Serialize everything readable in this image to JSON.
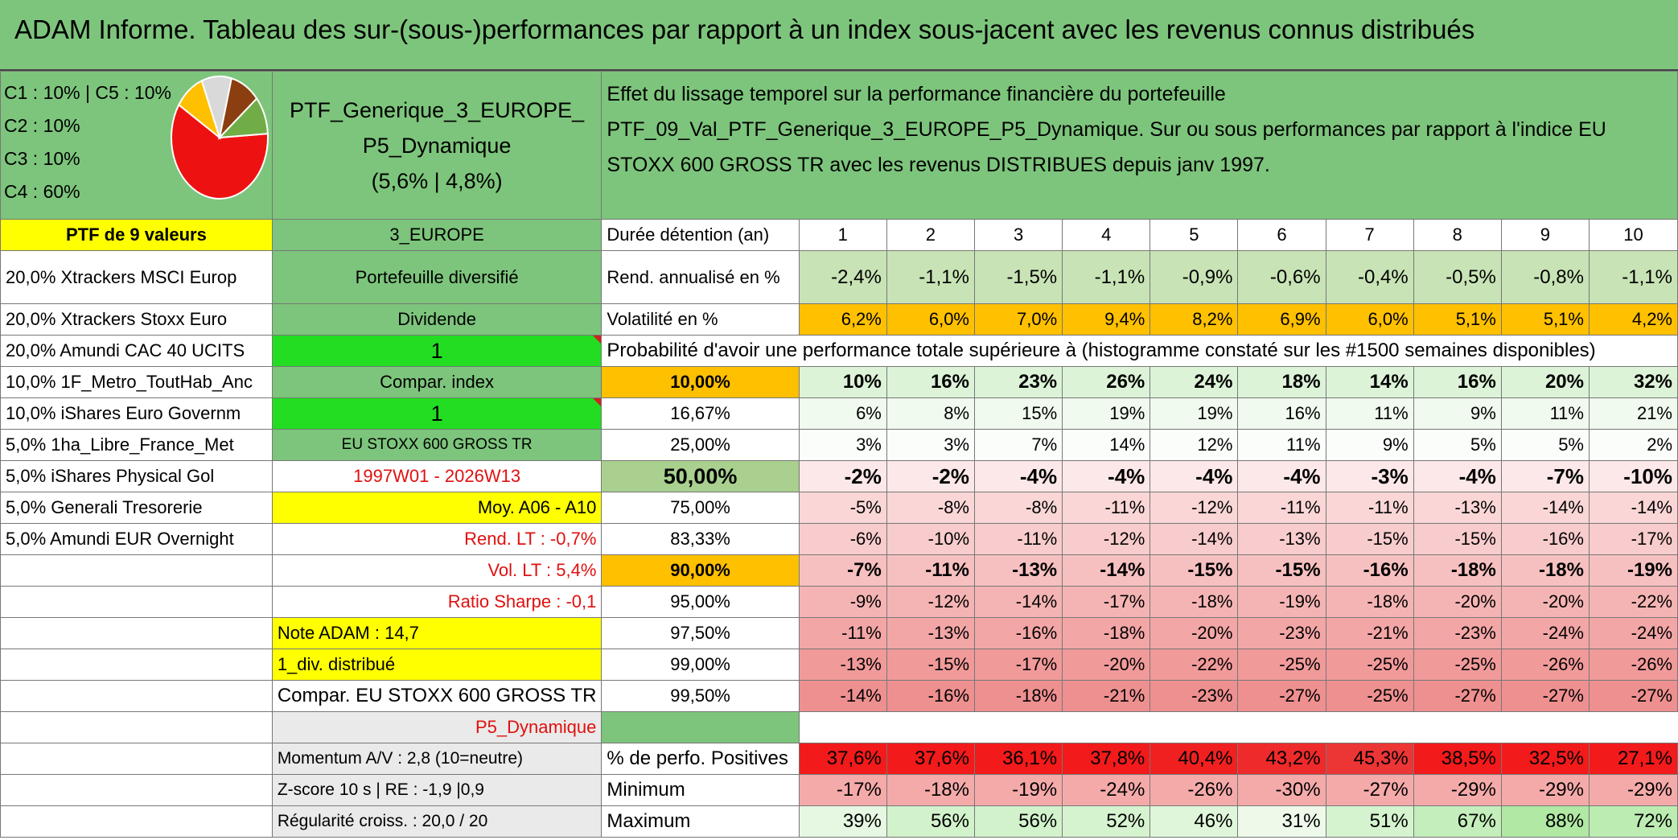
{
  "title": "ADAM Informe. Tableau des sur-(sous-)performances par rapport à un index sous-jacent avec les revenus connus distribués",
  "composition": [
    "C1 : 10% | C5 : 10%",
    "C2 : 10%",
    "C3 : 10%",
    "C4 : 60%"
  ],
  "pie": {
    "slices": [
      {
        "label": "C4",
        "value": 60,
        "color": "#ee1111"
      },
      {
        "label": "C3",
        "value": 10,
        "color": "#ffc000"
      },
      {
        "label": "C2",
        "value": 10,
        "color": "#d9d9d9"
      },
      {
        "label": "C1",
        "value": 10,
        "color": "#8b3e0f"
      },
      {
        "label": "C5",
        "value": 10,
        "color": "#70ad47"
      }
    ]
  },
  "portfolio": {
    "name": "PTF_Generique_3_EUROPE_ P5_Dynamique",
    "perf": "(5,6% | 4,8%)"
  },
  "description": "Effet du lissage temporel sur la performance financière du portefeuille PTF_09_Val_PTF_Generique_3_EUROPE_P5_Dynamique. Sur ou sous performances par rapport à l'indice EU STOXX 600 GROSS TR avec les revenus DISTRIBUES depuis janv 1997.",
  "ptf_header": "PTF de 9 valeurs",
  "zone": "3_EUROPE",
  "holdings": [
    "20,0% Xtrackers MSCI Europ",
    "20,0% Xtrackers Stoxx Euro",
    "20,0% Amundi CAC 40 UCITS",
    "10,0% 1F_Metro_ToutHab_Anc",
    "10,0% iShares Euro Governm",
    "5,0% 1ha_Libre_France_Met",
    "5,0% iShares Physical Gol",
    "5,0% Generali Tresorerie",
    "5,0% Amundi EUR Overnight"
  ],
  "info": {
    "diversified": "Portefeuille diversifié",
    "dividende": "Dividende",
    "one_a": "1",
    "compar_index": "Compar. index",
    "one_b": "1",
    "index_name": "EU STOXX 600 GROSS TR",
    "period": "1997W01 - 2026W13",
    "moy": "Moy. A06 - A10",
    "rend_lt": "Rend. LT : -0,7%",
    "vol_lt": "Vol. LT : 5,4%",
    "sharpe": "Ratio Sharpe : -0,1",
    "note": "Note ADAM : 14,7",
    "div": "1_div. distribué",
    "compar": "Compar. EU STOXX 600 GROSS TR",
    "profile": "P5_Dynamique",
    "momentum": "Momentum A/V : 2,8 (10=neutre)",
    "zscore": "Z-score 10 s | RE : -1,9 |0,9",
    "regularite": "Régularité croiss. : 20,0 / 20"
  },
  "labels": {
    "duree": "Durée détention (an)",
    "rend": "Rend. annualisé en %",
    "vol": "Volatilité en %",
    "proba": "Probabilité d'avoir une performance totale supérieure à (histogramme constaté sur les #1500 semaines disponibles)",
    "positives": "% de perfo. Positives",
    "minimum": "Minimum",
    "maximum": "Maximum"
  },
  "years": [
    "1",
    "2",
    "3",
    "4",
    "5",
    "6",
    "7",
    "8",
    "9",
    "10"
  ],
  "rend": [
    "-2,4%",
    "-1,1%",
    "-1,5%",
    "-1,1%",
    "-0,9%",
    "-0,6%",
    "-0,4%",
    "-0,5%",
    "-0,8%",
    "-1,1%"
  ],
  "vol": [
    "6,2%",
    "6,0%",
    "7,0%",
    "9,4%",
    "8,2%",
    "6,9%",
    "6,0%",
    "5,1%",
    "5,1%",
    "4,2%"
  ],
  "quantiles": [
    {
      "q": "10,00%",
      "values": [
        "10%",
        "16%",
        "23%",
        "26%",
        "24%",
        "18%",
        "14%",
        "16%",
        "20%",
        "32%"
      ]
    },
    {
      "q": "16,67%",
      "values": [
        "6%",
        "8%",
        "15%",
        "19%",
        "19%",
        "16%",
        "11%",
        "9%",
        "11%",
        "21%"
      ]
    },
    {
      "q": "25,00%",
      "values": [
        "3%",
        "3%",
        "7%",
        "14%",
        "12%",
        "11%",
        "9%",
        "5%",
        "5%",
        "2%"
      ]
    },
    {
      "q": "50,00%",
      "values": [
        "-2%",
        "-2%",
        "-4%",
        "-4%",
        "-4%",
        "-4%",
        "-3%",
        "-4%",
        "-7%",
        "-10%"
      ]
    },
    {
      "q": "75,00%",
      "values": [
        "-5%",
        "-8%",
        "-8%",
        "-11%",
        "-12%",
        "-11%",
        "-11%",
        "-13%",
        "-14%",
        "-14%"
      ]
    },
    {
      "q": "83,33%",
      "values": [
        "-6%",
        "-10%",
        "-11%",
        "-12%",
        "-14%",
        "-13%",
        "-15%",
        "-15%",
        "-16%",
        "-17%"
      ]
    },
    {
      "q": "90,00%",
      "values": [
        "-7%",
        "-11%",
        "-13%",
        "-14%",
        "-15%",
        "-15%",
        "-16%",
        "-18%",
        "-18%",
        "-19%"
      ]
    },
    {
      "q": "95,00%",
      "values": [
        "-9%",
        "-12%",
        "-14%",
        "-17%",
        "-18%",
        "-19%",
        "-18%",
        "-20%",
        "-20%",
        "-22%"
      ]
    },
    {
      "q": "97,50%",
      "values": [
        "-11%",
        "-13%",
        "-16%",
        "-18%",
        "-20%",
        "-23%",
        "-21%",
        "-23%",
        "-24%",
        "-24%"
      ]
    },
    {
      "q": "99,00%",
      "values": [
        "-13%",
        "-15%",
        "-17%",
        "-20%",
        "-22%",
        "-25%",
        "-25%",
        "-25%",
        "-26%",
        "-26%"
      ]
    },
    {
      "q": "99,50%",
      "values": [
        "-14%",
        "-16%",
        "-18%",
        "-21%",
        "-23%",
        "-27%",
        "-25%",
        "-27%",
        "-27%",
        "-27%"
      ]
    }
  ],
  "positives": [
    "37,6%",
    "37,6%",
    "36,1%",
    "37,8%",
    "40,4%",
    "43,2%",
    "45,3%",
    "38,5%",
    "32,5%",
    "27,1%"
  ],
  "minimum": [
    "-17%",
    "-18%",
    "-19%",
    "-24%",
    "-26%",
    "-30%",
    "-27%",
    "-29%",
    "-29%",
    "-29%"
  ],
  "maximum": [
    "39%",
    "56%",
    "56%",
    "52%",
    "46%",
    "31%",
    "51%",
    "67%",
    "88%",
    "72%"
  ]
}
